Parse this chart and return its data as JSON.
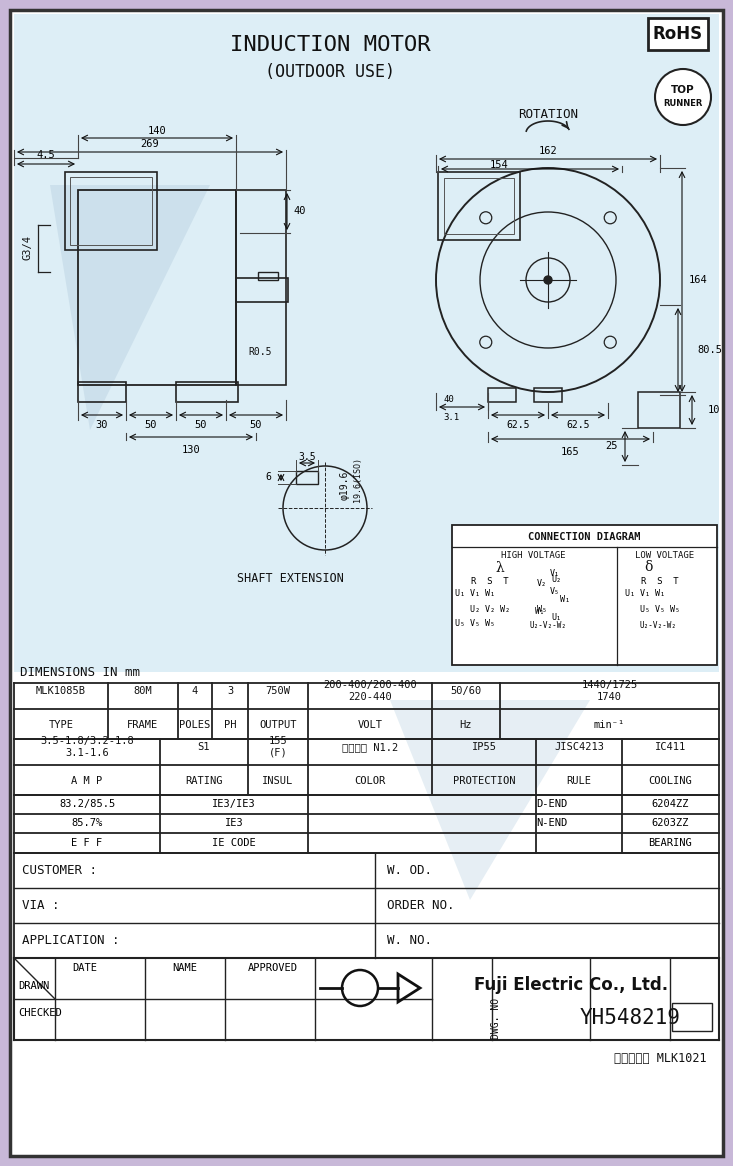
{
  "title1": "INDUCTION MOTOR",
  "title2": "(OUTDOOR USE)",
  "rohs_text": "RoHS",
  "rotation_text": "ROTATION",
  "bg_color": "#e8f4f8",
  "border_color": "#333333",
  "line_color": "#222222",
  "dim_color": "#111111",
  "watermark_color": "#c8dce8",
  "shaft_extension_label": "SHAFT EXTENSION",
  "conn_diagram_title": "CONNECTION DIAGRAM",
  "conn_high": "HIGH VOLTAGE",
  "conn_low": "LOW VOLTAGE",
  "dim_label": "DIMENSIONS IN mm",
  "table_row1": [
    "MLK1085B",
    "80M",
    "4",
    "3",
    "750W",
    "200-400/200-400\n220-440",
    "50/60",
    "1440/1725\n1740"
  ],
  "table_row1_labels": [
    "TYPE",
    "FRAME",
    "POLES",
    "PH",
    "OUTPUT",
    "VOLT",
    "Hz",
    "min⁻¹"
  ],
  "table_row3": [
    "3.5-1.8/3.2-1.8\n3.1-1.6",
    "S1",
    "155\n(F)",
    "マンセル N1.2",
    "IP55",
    "JISC4213",
    "IC411"
  ],
  "table_row3_labels": [
    "A M P",
    "RATING",
    "INSUL",
    "COLOR",
    "PROTECTION",
    "RULE",
    "COOLING"
  ],
  "customer_label": "CUSTOMER :",
  "via_label": "VIA :",
  "app_label": "APPLICATION :",
  "wod_label": "W. OD.",
  "order_label": "ORDER NO.",
  "wno_label": "W. NO.",
  "company": "Fuji Electric Co., Ltd.",
  "dwg_no": "YH548219",
  "part_code": "品番コード MLK1021",
  "drawn_label": "DRAWN",
  "checked_label": "CHECKED",
  "date_label": "DATE",
  "name_label": "NAME",
  "approved_label": "APPROVED",
  "dwg_no_label": "DWG. NO"
}
